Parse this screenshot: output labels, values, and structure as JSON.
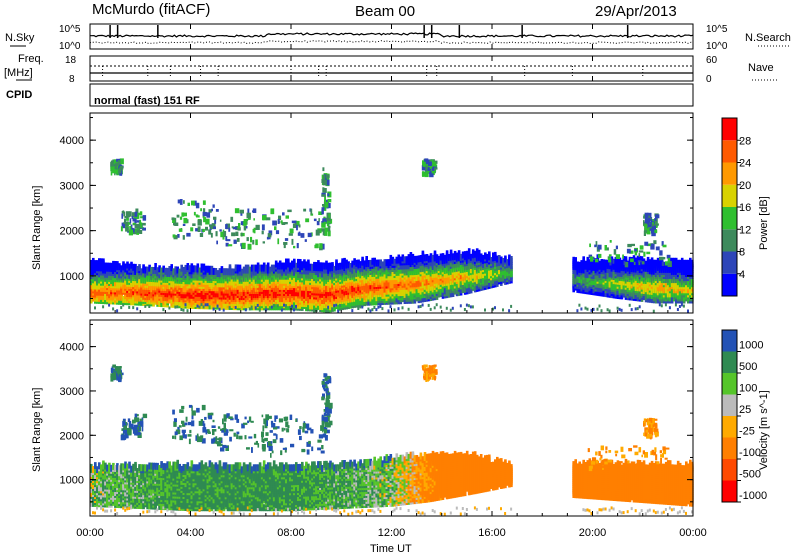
{
  "header": {
    "site": "McMurdo (fitACF)",
    "beam": "Beam 00",
    "date": "29/Apr/2013"
  },
  "noise_panel": {
    "left_label": "N.Sky",
    "left_ticks": [
      "10^5",
      "10^0"
    ],
    "right_ticks": [
      "10^5",
      "10^0"
    ],
    "right_label": "N.Search"
  },
  "freq_panel": {
    "left_label_1": "Freq.",
    "left_label_2": "[MHz]",
    "left_ticks": [
      "18",
      "8"
    ],
    "right_ticks": [
      "60",
      "0"
    ],
    "right_label": "Nave"
  },
  "cpid_panel": {
    "label": "CPID",
    "mode": "normal (fast) 151 RF"
  },
  "x_axis": {
    "label": "Time UT",
    "ticks": [
      "00:00",
      "04:00",
      "08:00",
      "12:00",
      "16:00",
      "20:00",
      "00:00"
    ]
  },
  "colors": {
    "power": [
      "#0000ff",
      "#2d45b8",
      "#3d8a5c",
      "#2fbf2f",
      "#d8d200",
      "#ff9900",
      "#ff5a00",
      "#ff0000"
    ],
    "velocity": [
      "#ff0000",
      "#ff4a00",
      "#ff7f00",
      "#ffaa00",
      "#bbbbbb",
      "#55c52a",
      "#2f8a52",
      "#2352b5"
    ]
  },
  "chart_data": [
    {
      "type": "heatmap",
      "name": "power",
      "xlabel": "Time UT",
      "ylabel": "Slant Range [km]",
      "xlim": [
        0,
        24
      ],
      "ylim": [
        180,
        4600
      ],
      "x_ticks": [
        "00:00",
        "04:00",
        "08:00",
        "12:00",
        "16:00",
        "20:00",
        "00:00"
      ],
      "y_ticks": [
        1000,
        2000,
        3000,
        4000
      ],
      "colorbar": {
        "label": "Power [dB]",
        "ticks": [
          4,
          8,
          12,
          16,
          20,
          24,
          28
        ],
        "range": [
          0,
          32
        ]
      },
      "main_band": [
        {
          "t": 0,
          "low": 500,
          "high": 1350,
          "core": 700,
          "power": 26
        },
        {
          "t": 2,
          "low": 450,
          "high": 1200,
          "core": 700,
          "power": 28
        },
        {
          "t": 4,
          "low": 380,
          "high": 1200,
          "core": 650,
          "power": 30
        },
        {
          "t": 6,
          "low": 350,
          "high": 1200,
          "core": 650,
          "power": 30
        },
        {
          "t": 8,
          "low": 350,
          "high": 1300,
          "core": 700,
          "power": 30
        },
        {
          "t": 9.5,
          "low": 300,
          "high": 1300,
          "core": 650,
          "power": 30
        },
        {
          "t": 11,
          "low": 450,
          "high": 1350,
          "core": 800,
          "power": 28
        },
        {
          "t": 13,
          "low": 500,
          "high": 1450,
          "core": 900,
          "power": 26
        },
        {
          "t": 15,
          "low": 700,
          "high": 1550,
          "core": 1050,
          "power": 22
        },
        {
          "t": 16.8,
          "low": 950,
          "high": 1400,
          "core": 1150,
          "power": 14
        },
        {
          "t": 19.2,
          "low": 750,
          "high": 1350,
          "core": 1000,
          "power": 12
        },
        {
          "t": 21,
          "low": 600,
          "high": 1400,
          "core": 900,
          "power": 18
        },
        {
          "t": 22.5,
          "low": 500,
          "high": 1350,
          "core": 800,
          "power": 22
        },
        {
          "t": 24,
          "low": 500,
          "high": 1300,
          "core": 750,
          "power": 20
        }
      ],
      "data_gaps_h": [
        [
          16.8,
          19.2
        ]
      ]
    },
    {
      "type": "heatmap",
      "name": "velocity",
      "xlabel": "Time UT",
      "ylabel": "Slant Range [km]",
      "xlim": [
        0,
        24
      ],
      "ylim": [
        180,
        4600
      ],
      "x_ticks": [
        "00:00",
        "04:00",
        "08:00",
        "12:00",
        "16:00",
        "20:00",
        "00:00"
      ],
      "y_ticks": [
        1000,
        2000,
        3000,
        4000
      ],
      "colorbar": {
        "label": "Velocity [m s^-1]",
        "ticks": [
          1000,
          500,
          100,
          25,
          -25,
          -100,
          -500,
          -1000
        ]
      },
      "main_band": [
        {
          "t": 0,
          "low": 500,
          "high": 1350,
          "velocity": 50
        },
        {
          "t": 4,
          "low": 400,
          "high": 1350,
          "velocity": 150
        },
        {
          "t": 8,
          "low": 400,
          "high": 1350,
          "velocity": 150
        },
        {
          "t": 10,
          "low": 450,
          "high": 1350,
          "velocity": 100
        },
        {
          "t": 12,
          "low": 500,
          "high": 1500,
          "velocity": 50
        },
        {
          "t": 13.5,
          "low": 600,
          "high": 1600,
          "velocity": -150
        },
        {
          "t": 15,
          "low": 750,
          "high": 1600,
          "velocity": -300
        },
        {
          "t": 16.8,
          "low": 950,
          "high": 1350,
          "velocity": -300
        },
        {
          "t": 19.2,
          "low": 700,
          "high": 1400,
          "velocity": -250
        },
        {
          "t": 24,
          "low": 500,
          "high": 1350,
          "velocity": -250
        }
      ],
      "data_gaps_h": [
        [
          16.8,
          19.2
        ]
      ]
    }
  ]
}
